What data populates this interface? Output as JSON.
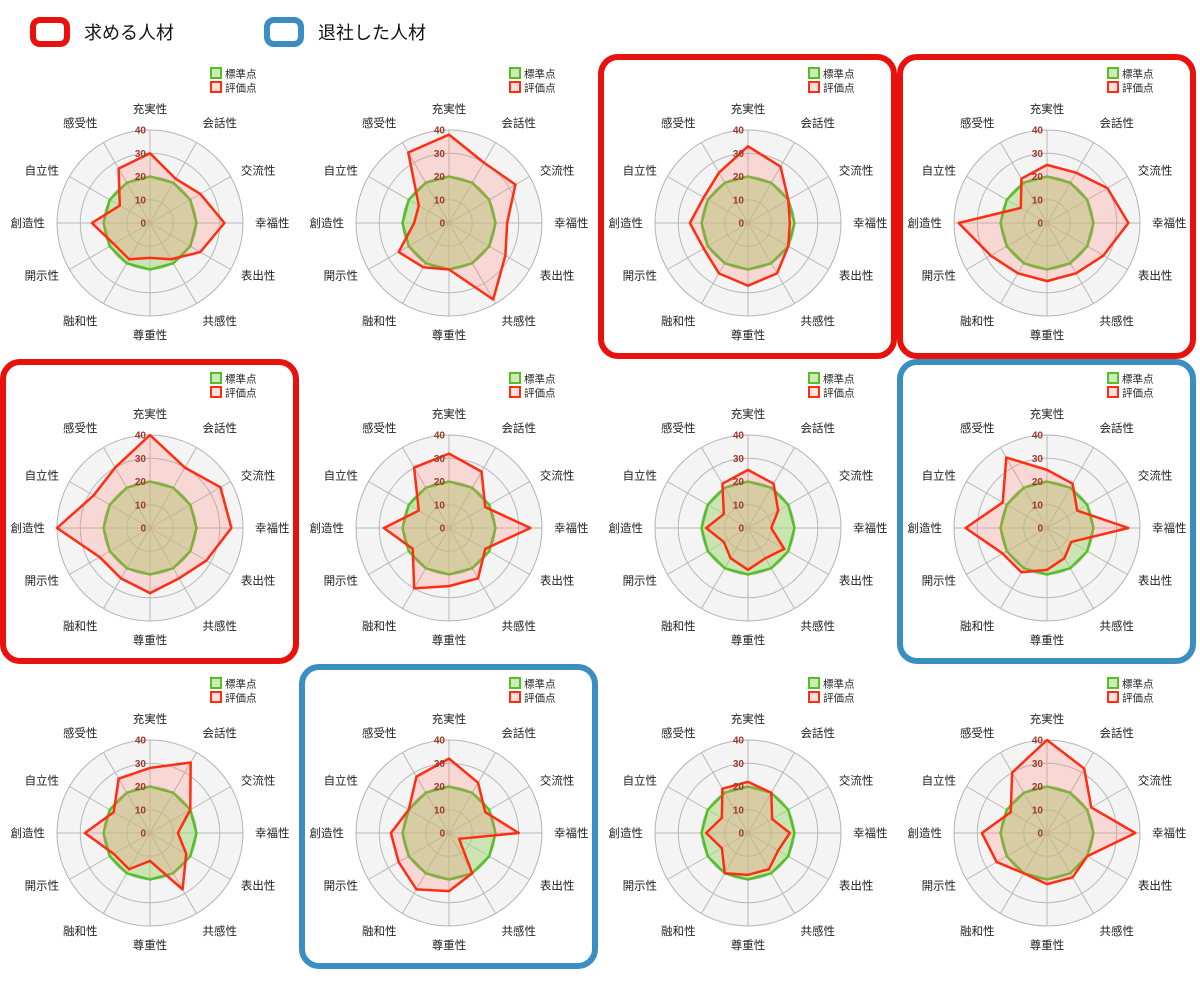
{
  "page_legend": {
    "desired": {
      "label": "求める人材",
      "color": "#e8110d"
    },
    "departed": {
      "label": "退社した人材",
      "color": "#3a8ec2"
    }
  },
  "chart_data": {
    "type": "radar",
    "count": 12,
    "axes": [
      "充実性",
      "会話性",
      "交流性",
      "幸福性",
      "表出性",
      "共感性",
      "尊重性",
      "融和性",
      "開示性",
      "創造性",
      "自立性",
      "感受性"
    ],
    "scale": {
      "min": 0,
      "max": 40,
      "ticks": [
        0,
        10,
        20,
        30,
        40
      ],
      "tick_color": "#9b3a28"
    },
    "series_legend": [
      {
        "name": "標準点",
        "color": "#55c025",
        "fill": "rgba(170,215,125,0.55)"
      },
      {
        "name": "評価点",
        "color": "#ff2e12",
        "fill": "rgba(255,130,120,0.25)"
      }
    ],
    "standard_values": [
      20,
      20,
      20,
      20,
      20,
      20,
      20,
      20,
      20,
      20,
      20,
      20
    ],
    "charts": [
      {
        "index": 1,
        "highlight": null,
        "evaluation": [
          30,
          22,
          25,
          32,
          25,
          18,
          15,
          18,
          18,
          25,
          15,
          27
        ]
      },
      {
        "index": 2,
        "highlight": null,
        "evaluation": [
          38,
          30,
          33,
          25,
          28,
          38,
          20,
          22,
          25,
          15,
          15,
          35
        ]
      },
      {
        "index": 3,
        "highlight": "red",
        "evaluation": [
          33,
          28,
          20,
          18,
          20,
          25,
          27,
          25,
          22,
          25,
          22,
          25
        ]
      },
      {
        "index": 4,
        "highlight": "red",
        "evaluation": [
          25,
          25,
          30,
          35,
          28,
          25,
          25,
          25,
          28,
          38,
          13,
          22
        ]
      },
      {
        "index": 5,
        "highlight": "red",
        "evaluation": [
          40,
          30,
          35,
          35,
          28,
          25,
          28,
          25,
          25,
          40,
          28,
          30
        ]
      },
      {
        "index": 6,
        "highlight": null,
        "evaluation": [
          32,
          28,
          18,
          35,
          18,
          25,
          25,
          30,
          18,
          28,
          15,
          30
        ]
      },
      {
        "index": 7,
        "highlight": null,
        "evaluation": [
          25,
          22,
          15,
          10,
          18,
          15,
          18,
          15,
          12,
          18,
          12,
          22
        ]
      },
      {
        "index": 8,
        "highlight": "blue",
        "evaluation": [
          25,
          22,
          15,
          35,
          12,
          15,
          18,
          22,
          22,
          35,
          22,
          35
        ]
      },
      {
        "index": 9,
        "highlight": null,
        "evaluation": [
          28,
          35,
          20,
          12,
          18,
          28,
          12,
          18,
          18,
          28,
          18,
          27
        ]
      },
      {
        "index": 10,
        "highlight": "blue",
        "evaluation": [
          32,
          25,
          18,
          30,
          5,
          20,
          25,
          28,
          25,
          25,
          20,
          28
        ]
      },
      {
        "index": 11,
        "highlight": null,
        "evaluation": [
          22,
          20,
          12,
          18,
          15,
          18,
          18,
          20,
          13,
          18,
          13,
          22
        ]
      },
      {
        "index": 12,
        "highlight": null,
        "evaluation": [
          40,
          32,
          22,
          38,
          20,
          22,
          22,
          20,
          25,
          28,
          18,
          30
        ]
      }
    ]
  }
}
